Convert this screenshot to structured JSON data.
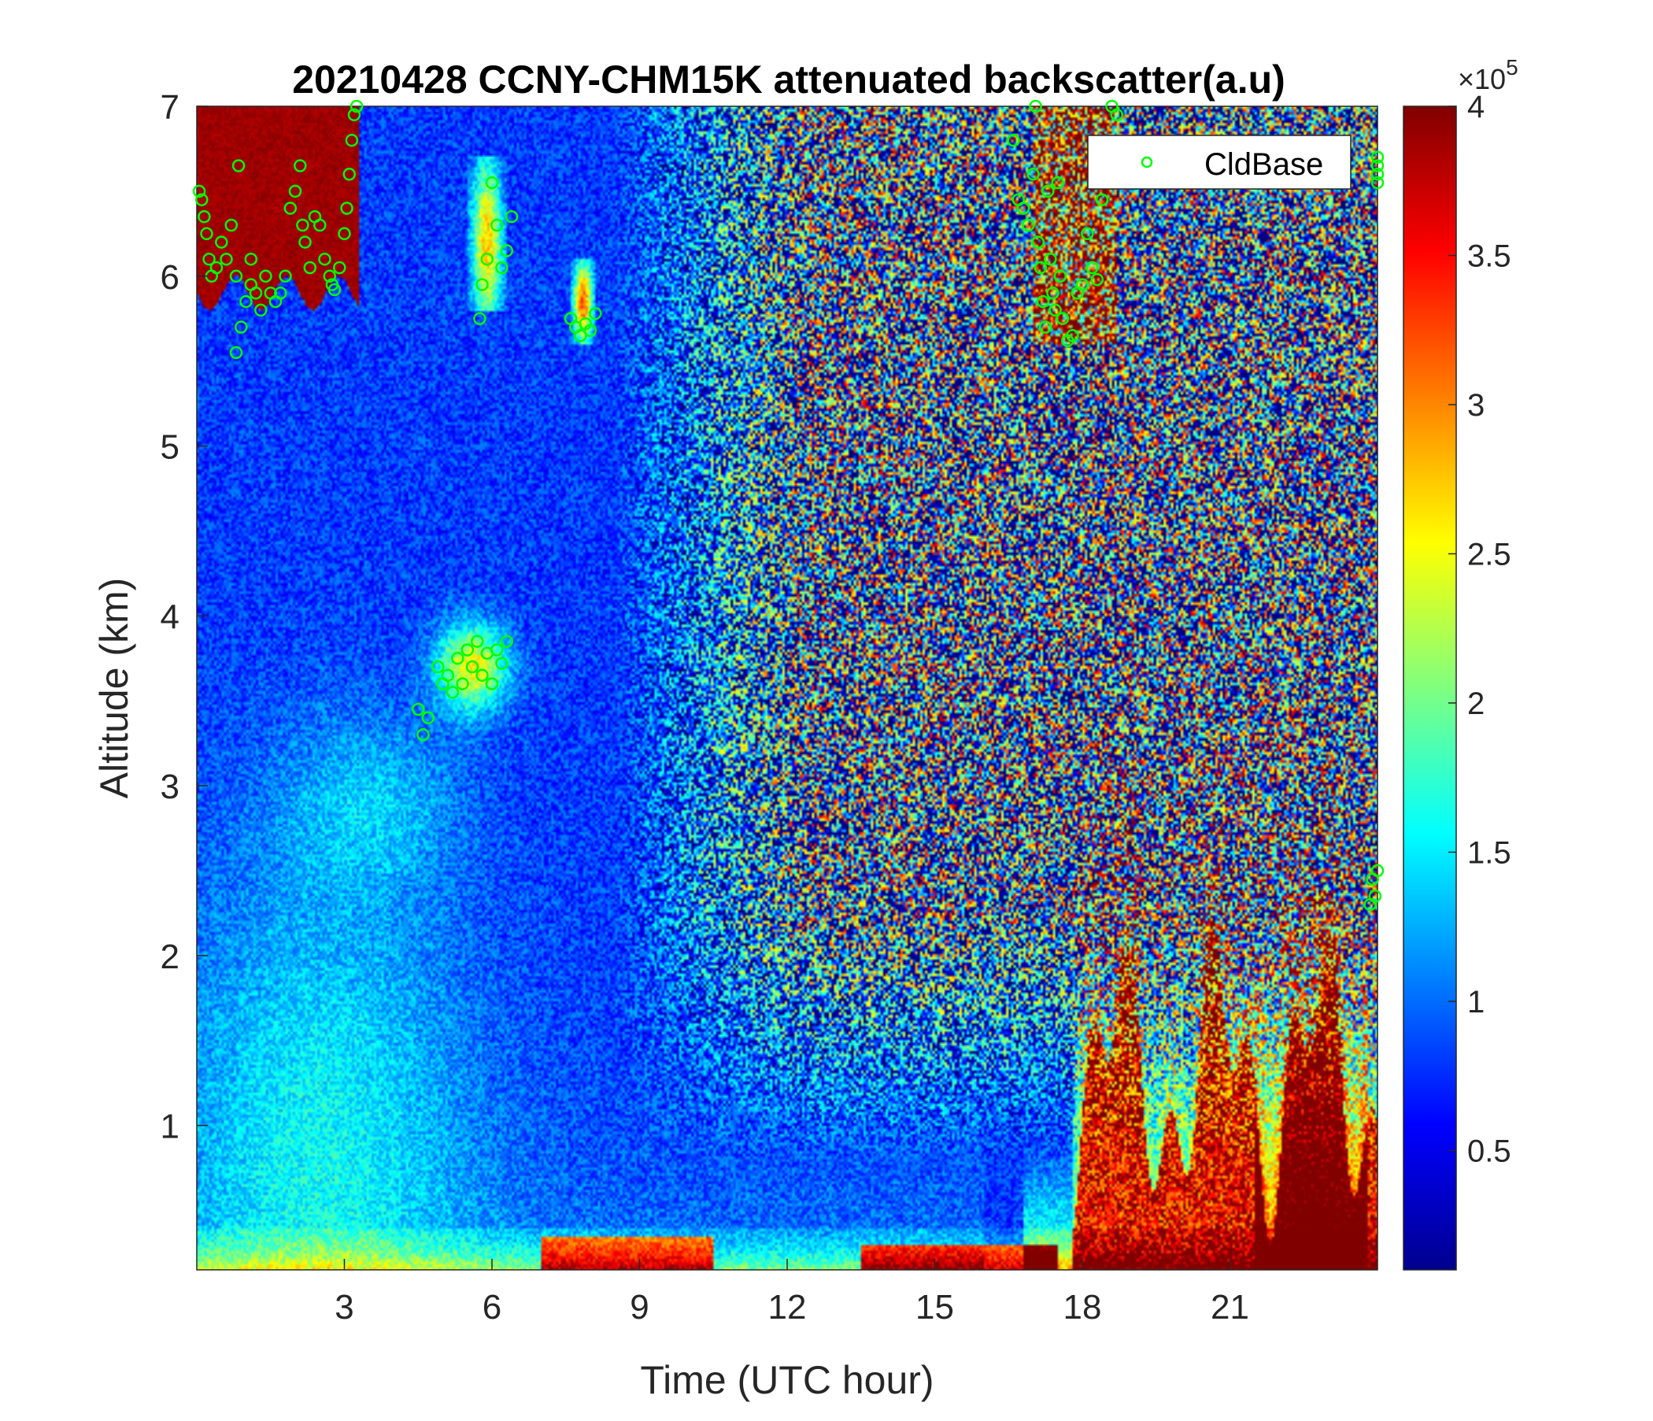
{
  "chart_data": {
    "type": "heatmap",
    "title": "20210428 CCNY-CHM15K attenuated backscatter(a.u)",
    "xlabel": "Time (UTC hour)",
    "ylabel": "Altitude (km)",
    "xlim": [
      0,
      24
    ],
    "ylim": [
      0.15,
      7
    ],
    "xticks": [
      3,
      6,
      9,
      12,
      15,
      18,
      21
    ],
    "yticks": [
      1,
      2,
      3,
      4,
      5,
      6,
      7
    ],
    "colorbar": {
      "clim": [
        0.1,
        4
      ],
      "ticks": [
        0.5,
        1,
        1.5,
        2,
        2.5,
        3,
        3.5,
        4
      ],
      "tick_labels": [
        "0.5",
        "1",
        "1.5",
        "2",
        "2.5",
        "3",
        "3.5",
        "4"
      ],
      "exponent_base": "×10",
      "exponent_power": "5",
      "colormap": "jet"
    },
    "legend": {
      "entries": [
        "CldBase"
      ],
      "location": "top-right"
    },
    "series": [
      {
        "name": "CldBase",
        "marker": "circle",
        "color": "#00ff00",
        "points": [
          [
            0.05,
            6.5
          ],
          [
            0.1,
            6.45
          ],
          [
            0.15,
            6.35
          ],
          [
            0.2,
            6.25
          ],
          [
            0.25,
            6.1
          ],
          [
            0.3,
            6.0
          ],
          [
            0.4,
            6.05
          ],
          [
            0.5,
            6.2
          ],
          [
            0.6,
            6.1
          ],
          [
            0.7,
            6.3
          ],
          [
            0.8,
            6.0
          ],
          [
            0.8,
            5.55
          ],
          [
            0.9,
            5.7
          ],
          [
            1.0,
            5.85
          ],
          [
            1.1,
            5.95
          ],
          [
            1.2,
            5.9
          ],
          [
            1.3,
            5.8
          ],
          [
            1.4,
            6.0
          ],
          [
            1.5,
            5.9
          ],
          [
            1.6,
            5.85
          ],
          [
            1.7,
            5.9
          ],
          [
            1.8,
            6.0
          ],
          [
            1.9,
            6.4
          ],
          [
            2.0,
            6.5
          ],
          [
            2.1,
            6.65
          ],
          [
            2.15,
            6.3
          ],
          [
            2.2,
            6.2
          ],
          [
            2.3,
            6.05
          ],
          [
            2.4,
            6.35
          ],
          [
            2.5,
            6.3
          ],
          [
            2.6,
            6.1
          ],
          [
            2.7,
            6.0
          ],
          [
            2.75,
            5.95
          ],
          [
            2.8,
            5.92
          ],
          [
            2.9,
            6.05
          ],
          [
            3.0,
            6.25
          ],
          [
            3.05,
            6.4
          ],
          [
            3.1,
            6.6
          ],
          [
            3.15,
            6.8
          ],
          [
            3.2,
            6.95
          ],
          [
            3.25,
            7.0
          ],
          [
            0.85,
            6.65
          ],
          [
            1.1,
            6.1
          ],
          [
            5.75,
            5.75
          ],
          [
            5.8,
            5.95
          ],
          [
            5.9,
            6.1
          ],
          [
            6.0,
            6.55
          ],
          [
            6.1,
            6.3
          ],
          [
            6.2,
            6.05
          ],
          [
            6.3,
            6.15
          ],
          [
            6.4,
            6.35
          ],
          [
            7.6,
            5.75
          ],
          [
            7.7,
            5.7
          ],
          [
            7.8,
            5.65
          ],
          [
            7.9,
            5.72
          ],
          [
            8.0,
            5.68
          ],
          [
            8.1,
            5.78
          ],
          [
            16.6,
            6.8
          ],
          [
            16.7,
            6.45
          ],
          [
            16.8,
            6.4
          ],
          [
            16.9,
            6.3
          ],
          [
            17.0,
            6.6
          ],
          [
            17.05,
            7.0
          ],
          [
            17.1,
            6.2
          ],
          [
            17.15,
            6.05
          ],
          [
            17.2,
            5.85
          ],
          [
            17.25,
            5.7
          ],
          [
            17.3,
            6.5
          ],
          [
            17.35,
            6.1
          ],
          [
            17.4,
            5.9
          ],
          [
            17.45,
            5.8
          ],
          [
            17.5,
            6.55
          ],
          [
            17.55,
            6.0
          ],
          [
            17.6,
            5.75
          ],
          [
            17.7,
            5.62
          ],
          [
            17.8,
            5.65
          ],
          [
            17.9,
            5.9
          ],
          [
            18.0,
            5.95
          ],
          [
            18.1,
            6.25
          ],
          [
            18.2,
            6.05
          ],
          [
            18.3,
            5.98
          ],
          [
            18.4,
            6.45
          ],
          [
            18.5,
            6.6
          ],
          [
            18.6,
            7.0
          ],
          [
            18.7,
            6.95
          ],
          [
            4.5,
            3.45
          ],
          [
            4.6,
            3.3
          ],
          [
            4.7,
            3.4
          ],
          [
            4.9,
            3.7
          ],
          [
            5.0,
            3.6
          ],
          [
            5.1,
            3.65
          ],
          [
            5.2,
            3.55
          ],
          [
            5.3,
            3.75
          ],
          [
            5.4,
            3.6
          ],
          [
            5.5,
            3.8
          ],
          [
            5.6,
            3.7
          ],
          [
            5.7,
            3.85
          ],
          [
            5.8,
            3.65
          ],
          [
            5.9,
            3.78
          ],
          [
            6.0,
            3.6
          ],
          [
            6.1,
            3.8
          ],
          [
            6.2,
            3.72
          ],
          [
            6.3,
            3.85
          ],
          [
            23.9,
            2.45
          ],
          [
            23.95,
            2.35
          ],
          [
            24.0,
            2.5
          ],
          [
            23.85,
            2.3
          ],
          [
            24.4,
            6.6
          ],
          [
            24.5,
            6.55
          ],
          [
            24.55,
            6.7
          ],
          [
            24.6,
            6.65
          ]
        ]
      }
    ]
  }
}
